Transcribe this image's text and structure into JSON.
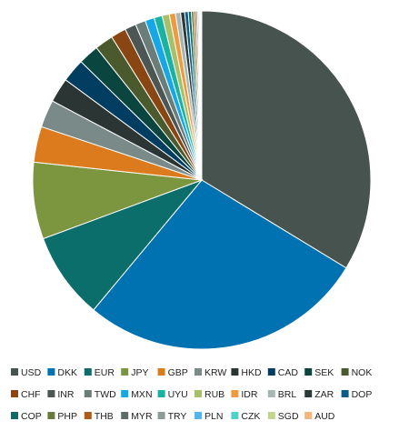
{
  "chart_data": {
    "type": "pie",
    "title": "",
    "legend_position": "bottom",
    "slices": [
      {
        "label": "USD",
        "value": 34.5,
        "color": "#47534f"
      },
      {
        "label": "DKK",
        "value": 28.0,
        "color": "#0071b1"
      },
      {
        "label": "EUR",
        "value": 8.5,
        "color": "#0b6e6a"
      },
      {
        "label": "JPY",
        "value": 7.5,
        "color": "#7b963e"
      },
      {
        "label": "GBP",
        "value": 3.5,
        "color": "#db7b1e"
      },
      {
        "label": "KRW",
        "value": 2.7,
        "color": "#7a8a88"
      },
      {
        "label": "HKD",
        "value": 2.4,
        "color": "#2b3634"
      },
      {
        "label": "CAD",
        "value": 2.3,
        "color": "#003d61"
      },
      {
        "label": "SEK",
        "value": 2.0,
        "color": "#0b4540"
      },
      {
        "label": "NOK",
        "value": 1.8,
        "color": "#4a5a2c"
      },
      {
        "label": "CHF",
        "value": 1.5,
        "color": "#8a4612"
      },
      {
        "label": "INR",
        "value": 1.1,
        "color": "#4c5755"
      },
      {
        "label": "TWD",
        "value": 1.0,
        "color": "#6b7d79"
      },
      {
        "label": "MXN",
        "value": 0.9,
        "color": "#16a8e6"
      },
      {
        "label": "UYU",
        "value": 0.8,
        "color": "#1ab3a3"
      },
      {
        "label": "RUB",
        "value": 0.7,
        "color": "#a8bf6a"
      },
      {
        "label": "IDR",
        "value": 0.6,
        "color": "#ee9a3f"
      },
      {
        "label": "BRL",
        "value": 0.5,
        "color": "#a8b6b3"
      },
      {
        "label": "ZAR",
        "value": 0.4,
        "color": "#2a3a38"
      },
      {
        "label": "DOP",
        "value": 0.35,
        "color": "#0b5c8a"
      },
      {
        "label": "COP",
        "value": 0.3,
        "color": "#0e6a63"
      },
      {
        "label": "PHP",
        "value": 0.25,
        "color": "#6a7a3a"
      },
      {
        "label": "THB",
        "value": 0.2,
        "color": "#b05a15"
      },
      {
        "label": "MYR",
        "value": 0.15,
        "color": "#5e6b69"
      },
      {
        "label": "TRY",
        "value": 0.12,
        "color": "#8e9b98"
      },
      {
        "label": "PLN",
        "value": 0.1,
        "color": "#4fb6ef"
      },
      {
        "label": "CZK",
        "value": 0.08,
        "color": "#4fd1c8"
      },
      {
        "label": "SGD",
        "value": 0.06,
        "color": "#c2d58a"
      },
      {
        "label": "AUD",
        "value": 0.05,
        "color": "#f3b678"
      }
    ]
  }
}
